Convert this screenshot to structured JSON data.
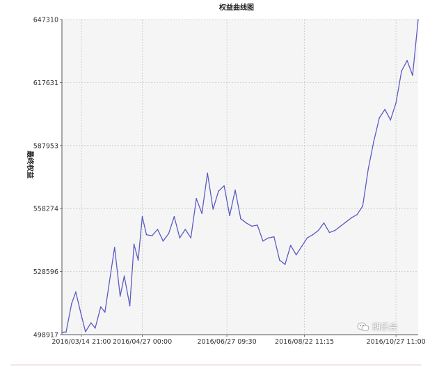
{
  "chart_data": {
    "type": "line",
    "title": "权益曲线图",
    "xlabel": "",
    "ylabel": "最终权益",
    "ylim": [
      498917,
      647310
    ],
    "grid": true,
    "y_ticks": [
      498917,
      528596,
      558274,
      587953,
      617631,
      647310
    ],
    "x_ticks": [
      "2016/03/14 21:00",
      "2016/04/27 00:00",
      "2016/06/27 09:30",
      "2016/08/22 11:15",
      "2016/10/27 11:00"
    ],
    "series": [
      {
        "name": "",
        "color": "#5b5bc4",
        "x": [
          "2016/02/29",
          "2016/03/03",
          "2016/03/07",
          "2016/03/10",
          "2016/03/14",
          "2016/03/17",
          "2016/03/21",
          "2016/03/24",
          "2016/03/28",
          "2016/03/31",
          "2016/04/04",
          "2016/04/07",
          "2016/04/11",
          "2016/04/14",
          "2016/04/18",
          "2016/04/21",
          "2016/04/24",
          "2016/04/27",
          "2016/04/30",
          "2016/05/04",
          "2016/05/08",
          "2016/05/12",
          "2016/05/16",
          "2016/05/20",
          "2016/05/24",
          "2016/05/28",
          "2016/06/01",
          "2016/06/05",
          "2016/06/09",
          "2016/06/13",
          "2016/06/17",
          "2016/06/21",
          "2016/06/25",
          "2016/06/29",
          "2016/07/03",
          "2016/07/07",
          "2016/07/11",
          "2016/07/15",
          "2016/07/19",
          "2016/07/23",
          "2016/07/27",
          "2016/07/31",
          "2016/08/04",
          "2016/08/08",
          "2016/08/12",
          "2016/08/16",
          "2016/08/20",
          "2016/08/24",
          "2016/08/28",
          "2016/09/01",
          "2016/09/05",
          "2016/09/09",
          "2016/09/13",
          "2016/09/17",
          "2016/09/21",
          "2016/09/25",
          "2016/09/29",
          "2016/10/03",
          "2016/10/07",
          "2016/10/11",
          "2016/10/15",
          "2016/10/19",
          "2016/10/23",
          "2016/10/27",
          "2016/10/31",
          "2016/11/04",
          "2016/11/08",
          "2016/11/12"
        ],
        "values": [
          500000,
          500200,
          513500,
          519000,
          508000,
          500300,
          504500,
          502000,
          512000,
          509500,
          527000,
          540000,
          517000,
          526500,
          512500,
          541500,
          534000,
          554500,
          546000,
          545500,
          548500,
          543000,
          546500,
          554500,
          544500,
          548500,
          544500,
          563000,
          556000,
          575000,
          558000,
          566500,
          569000,
          555000,
          567000,
          553500,
          551500,
          550000,
          550500,
          543000,
          544500,
          545000,
          534000,
          532000,
          541000,
          536500,
          540500,
          544500,
          546000,
          548000,
          551500,
          547000,
          548000,
          550000,
          552000,
          554000,
          555500,
          559500,
          577000,
          590000,
          601000,
          605000,
          600000,
          608000,
          623000,
          628000,
          621000,
          647310
        ]
      }
    ]
  },
  "watermark": {
    "text": "期乐会",
    "icon": "wechat-icon"
  }
}
